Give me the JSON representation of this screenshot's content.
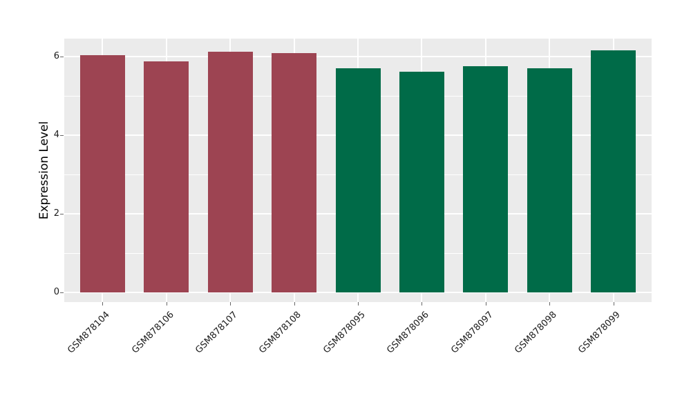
{
  "chart_data": {
    "type": "bar",
    "title": "",
    "xlabel": "",
    "ylabel": "Expression Level",
    "categories": [
      "GSM878104",
      "GSM878106",
      "GSM878107",
      "GSM878108",
      "GSM878095",
      "GSM878096",
      "GSM878097",
      "GSM878098",
      "GSM878099"
    ],
    "values": [
      6.03,
      5.87,
      6.13,
      6.08,
      5.7,
      5.61,
      5.75,
      5.71,
      6.15
    ],
    "bar_colors": [
      "#9D4452",
      "#9D4452",
      "#9D4452",
      "#9D4452",
      "#006B48",
      "#006B48",
      "#006B48",
      "#006B48",
      "#006B48"
    ],
    "yticks_major": [
      0,
      2,
      4,
      6
    ],
    "yticks_minor": [
      1,
      3,
      5
    ],
    "ylim": [
      -0.25,
      6.46
    ],
    "grid": true,
    "legend": "none",
    "panel_background": "#EBEBEB",
    "gridline_color": "#FFFFFF",
    "tick_label_color": "#1A1A1A",
    "axis_title_color": "#000000"
  }
}
